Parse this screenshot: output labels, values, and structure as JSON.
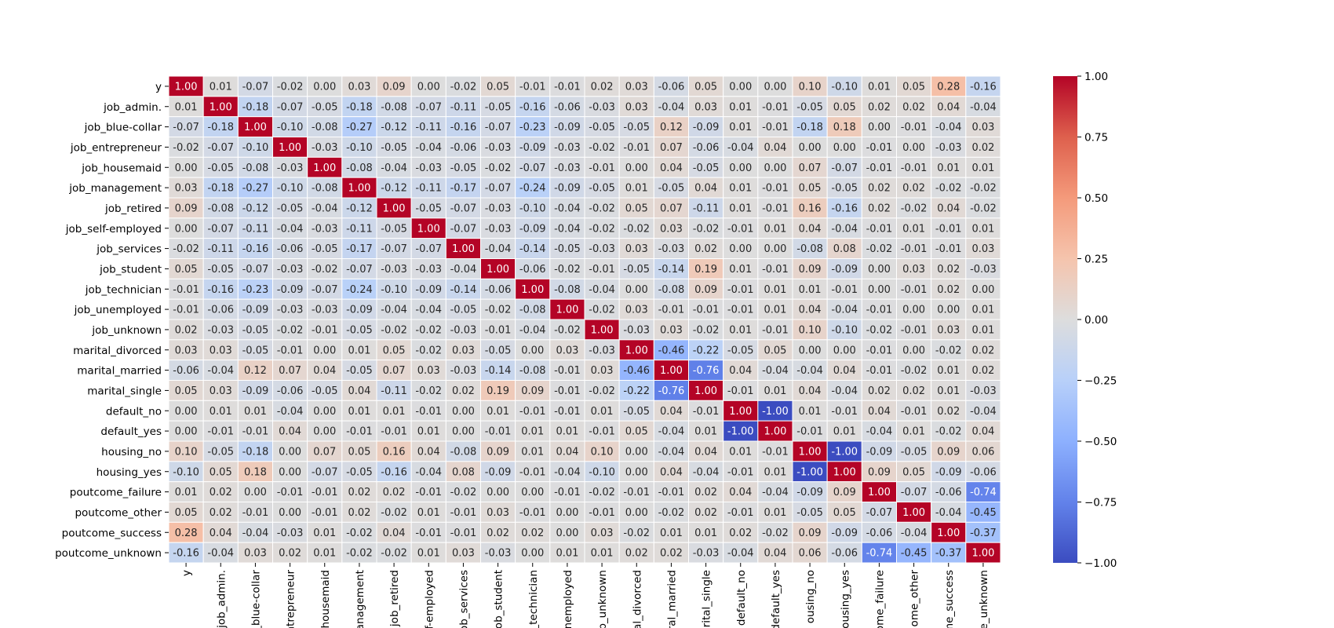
{
  "chart_data": {
    "type": "heatmap",
    "title": "",
    "xlabel": "",
    "ylabel": "",
    "row_labels": [
      "y",
      "job_admin.",
      "job_blue-collar",
      "job_entrepreneur",
      "job_housemaid",
      "job_management",
      "job_retired",
      "job_self-employed",
      "job_services",
      "job_student",
      "job_technician",
      "job_unemployed",
      "job_unknown",
      "marital_divorced",
      "marital_married",
      "marital_single",
      "default_no",
      "default_yes",
      "housing_no",
      "housing_yes",
      "poutcome_failure",
      "poutcome_other",
      "poutcome_success",
      "poutcome_unknown"
    ],
    "column_labels": [
      "y",
      "job_admin.",
      "job_blue-collar",
      "job_entrepreneur",
      "job_housemaid",
      "job_management",
      "job_retired",
      "job_self-employed",
      "job_services",
      "job_student",
      "job_technician",
      "job_unemployed",
      "job_unknown",
      "marital_divorced",
      "marital_married",
      "marital_single",
      "default_no",
      "default_yes",
      "housing_no",
      "housing_yes",
      "poutcome_failure",
      "poutcome_other",
      "poutcome_success",
      "poutcome_unknown"
    ],
    "column_tick_labels_visible": [
      "y",
      "job_admin.",
      "_blue-collar",
      "entrepreneur",
      "housemaid",
      "anagement",
      "job_retired",
      "f-employed",
      "ob_services",
      "ob_student",
      "_technician",
      "nemployed",
      "b_unknown",
      "al_divorced",
      "ral_married",
      "arital_single",
      "default_no",
      "default_yes",
      "ousing_no",
      "ousing_yes",
      "ome_failure",
      "ome_other",
      "me_success",
      "e_unknown"
    ],
    "values": [
      [
        1.0,
        0.01,
        -0.07,
        -0.02,
        0.0,
        0.03,
        0.09,
        -0.0,
        -0.02,
        0.05,
        -0.01,
        -0.01,
        0.02,
        0.03,
        -0.06,
        0.05,
        -0.0,
        0.0,
        0.1,
        -0.1,
        0.01,
        0.05,
        0.28,
        -0.16
      ],
      [
        0.01,
        1.0,
        -0.18,
        -0.07,
        -0.05,
        -0.18,
        -0.08,
        -0.07,
        -0.11,
        -0.05,
        -0.16,
        -0.06,
        -0.03,
        0.03,
        -0.04,
        0.03,
        0.01,
        -0.01,
        -0.05,
        0.05,
        0.02,
        0.02,
        0.04,
        -0.04
      ],
      [
        -0.07,
        -0.18,
        1.0,
        -0.1,
        -0.08,
        -0.27,
        -0.12,
        -0.11,
        -0.16,
        -0.07,
        -0.23,
        -0.09,
        -0.05,
        -0.05,
        0.12,
        -0.09,
        0.01,
        -0.01,
        -0.18,
        0.18,
        -0.0,
        -0.01,
        -0.04,
        0.03
      ],
      [
        -0.02,
        -0.07,
        -0.1,
        1.0,
        -0.03,
        -0.1,
        -0.05,
        -0.04,
        -0.06,
        -0.03,
        -0.09,
        -0.03,
        -0.02,
        -0.01,
        0.07,
        -0.06,
        -0.04,
        0.04,
        0.0,
        -0.0,
        -0.01,
        -0.0,
        -0.03,
        0.02
      ],
      [
        0.0,
        -0.05,
        -0.08,
        -0.03,
        1.0,
        -0.08,
        -0.04,
        -0.03,
        -0.05,
        -0.02,
        -0.07,
        -0.03,
        -0.01,
        -0.0,
        0.04,
        -0.05,
        -0.0,
        0.0,
        0.07,
        -0.07,
        -0.01,
        -0.01,
        0.01,
        0.01
      ],
      [
        0.03,
        -0.18,
        -0.27,
        -0.1,
        -0.08,
        1.0,
        -0.12,
        -0.11,
        -0.17,
        -0.07,
        -0.24,
        -0.09,
        -0.05,
        0.01,
        -0.05,
        0.04,
        0.01,
        -0.01,
        0.05,
        -0.05,
        0.02,
        0.02,
        -0.02,
        -0.02
      ],
      [
        0.09,
        -0.08,
        -0.12,
        -0.05,
        -0.04,
        -0.12,
        1.0,
        -0.05,
        -0.07,
        -0.03,
        -0.1,
        -0.04,
        -0.02,
        0.05,
        0.07,
        -0.11,
        0.01,
        -0.01,
        0.16,
        -0.16,
        0.02,
        -0.02,
        0.04,
        -0.02
      ],
      [
        -0.0,
        -0.07,
        -0.11,
        -0.04,
        -0.03,
        -0.11,
        -0.05,
        1.0,
        -0.07,
        -0.03,
        -0.09,
        -0.04,
        -0.02,
        -0.02,
        0.03,
        -0.02,
        -0.01,
        0.01,
        0.04,
        -0.04,
        -0.01,
        0.01,
        -0.01,
        0.01
      ],
      [
        -0.02,
        -0.11,
        -0.16,
        -0.06,
        -0.05,
        -0.17,
        -0.07,
        -0.07,
        1.0,
        -0.04,
        -0.14,
        -0.05,
        -0.03,
        0.03,
        -0.03,
        0.02,
        0.0,
        -0.0,
        -0.08,
        0.08,
        -0.02,
        -0.01,
        -0.01,
        0.03
      ],
      [
        0.05,
        -0.05,
        -0.07,
        -0.03,
        -0.02,
        -0.07,
        -0.03,
        -0.03,
        -0.04,
        1.0,
        -0.06,
        -0.02,
        -0.01,
        -0.05,
        -0.14,
        0.19,
        0.01,
        -0.01,
        0.09,
        -0.09,
        0.0,
        0.03,
        0.02,
        -0.03
      ],
      [
        -0.01,
        -0.16,
        -0.23,
        -0.09,
        -0.07,
        -0.24,
        -0.1,
        -0.09,
        -0.14,
        -0.06,
        1.0,
        -0.08,
        -0.04,
        -0.0,
        -0.08,
        0.09,
        -0.01,
        0.01,
        0.01,
        -0.01,
        -0.0,
        -0.01,
        0.02,
        -0.0
      ],
      [
        -0.01,
        -0.06,
        -0.09,
        -0.03,
        -0.03,
        -0.09,
        -0.04,
        -0.04,
        -0.05,
        -0.02,
        -0.08,
        1.0,
        -0.02,
        0.03,
        -0.01,
        -0.01,
        -0.01,
        0.01,
        0.04,
        -0.04,
        -0.01,
        -0.0,
        0.0,
        0.01
      ],
      [
        0.02,
        -0.03,
        -0.05,
        -0.02,
        -0.01,
        -0.05,
        -0.02,
        -0.02,
        -0.03,
        -0.01,
        -0.04,
        -0.02,
        1.0,
        -0.03,
        0.03,
        -0.02,
        0.01,
        -0.01,
        0.1,
        -0.1,
        -0.02,
        -0.01,
        0.03,
        0.01
      ],
      [
        0.03,
        0.03,
        -0.05,
        -0.01,
        -0.0,
        0.01,
        0.05,
        -0.02,
        0.03,
        -0.05,
        -0.0,
        0.03,
        -0.03,
        1.0,
        -0.46,
        -0.22,
        -0.05,
        0.05,
        0.0,
        -0.0,
        -0.01,
        -0.0,
        -0.02,
        0.02
      ],
      [
        -0.06,
        -0.04,
        0.12,
        0.07,
        0.04,
        -0.05,
        0.07,
        0.03,
        -0.03,
        -0.14,
        -0.08,
        -0.01,
        0.03,
        -0.46,
        1.0,
        -0.76,
        0.04,
        -0.04,
        -0.04,
        0.04,
        -0.01,
        -0.02,
        0.01,
        0.02
      ],
      [
        0.05,
        0.03,
        -0.09,
        -0.06,
        -0.05,
        0.04,
        -0.11,
        -0.02,
        0.02,
        0.19,
        0.09,
        -0.01,
        -0.02,
        -0.22,
        -0.76,
        1.0,
        -0.01,
        0.01,
        0.04,
        -0.04,
        0.02,
        0.02,
        0.01,
        -0.03
      ],
      [
        -0.0,
        0.01,
        0.01,
        -0.04,
        -0.0,
        0.01,
        0.01,
        -0.01,
        0.0,
        0.01,
        -0.01,
        -0.01,
        0.01,
        -0.05,
        0.04,
        -0.01,
        1.0,
        -1.0,
        0.01,
        -0.01,
        0.04,
        -0.01,
        0.02,
        -0.04
      ],
      [
        0.0,
        -0.01,
        -0.01,
        0.04,
        0.0,
        -0.01,
        -0.01,
        0.01,
        -0.0,
        -0.01,
        0.01,
        0.01,
        -0.01,
        0.05,
        -0.04,
        0.01,
        -1.0,
        1.0,
        -0.01,
        0.01,
        -0.04,
        0.01,
        -0.02,
        0.04
      ],
      [
        0.1,
        -0.05,
        -0.18,
        0.0,
        0.07,
        0.05,
        0.16,
        0.04,
        -0.08,
        0.09,
        0.01,
        0.04,
        0.1,
        0.0,
        -0.04,
        0.04,
        0.01,
        -0.01,
        1.0,
        -1.0,
        -0.09,
        -0.05,
        0.09,
        0.06
      ],
      [
        -0.1,
        0.05,
        0.18,
        -0.0,
        -0.07,
        -0.05,
        -0.16,
        -0.04,
        0.08,
        -0.09,
        -0.01,
        -0.04,
        -0.1,
        -0.0,
        0.04,
        -0.04,
        -0.01,
        0.01,
        -1.0,
        1.0,
        0.09,
        0.05,
        -0.09,
        -0.06
      ],
      [
        0.01,
        0.02,
        -0.0,
        -0.01,
        -0.01,
        0.02,
        0.02,
        -0.01,
        -0.02,
        0.0,
        -0.0,
        -0.01,
        -0.02,
        -0.01,
        -0.01,
        0.02,
        0.04,
        -0.04,
        -0.09,
        0.09,
        1.0,
        -0.07,
        -0.06,
        -0.74
      ],
      [
        0.05,
        0.02,
        -0.01,
        -0.0,
        -0.01,
        0.02,
        -0.02,
        0.01,
        -0.01,
        0.03,
        -0.01,
        -0.0,
        -0.01,
        -0.0,
        -0.02,
        0.02,
        -0.01,
        0.01,
        -0.05,
        0.05,
        -0.07,
        1.0,
        -0.04,
        -0.45
      ],
      [
        0.28,
        0.04,
        -0.04,
        -0.03,
        0.01,
        -0.02,
        0.04,
        -0.01,
        -0.01,
        0.02,
        0.02,
        0.0,
        0.03,
        -0.02,
        0.01,
        0.01,
        0.02,
        -0.02,
        0.09,
        -0.09,
        -0.06,
        -0.04,
        1.0,
        -0.37
      ],
      [
        -0.16,
        -0.04,
        0.03,
        0.02,
        0.01,
        -0.02,
        -0.02,
        0.01,
        0.03,
        -0.03,
        -0.0,
        0.01,
        0.01,
        0.02,
        0.02,
        -0.03,
        -0.04,
        0.04,
        0.06,
        -0.06,
        -0.74,
        -0.45,
        -0.37,
        1.0
      ]
    ],
    "value_format": "0.00",
    "colormap": "coolwarm",
    "vmin": -1.0,
    "vmax": 1.0,
    "colorbar": {
      "position": "right",
      "ticks": [
        1.0,
        0.75,
        0.5,
        0.25,
        0.0,
        -0.25,
        -0.5,
        -0.75,
        -1.0
      ],
      "tick_labels": [
        "1.00",
        "0.75",
        "0.50",
        "0.25",
        "0.00",
        "−0.25",
        "−0.50",
        "−0.75",
        "−1.00"
      ]
    },
    "grid": false,
    "cell_border_color": "#ffffff"
  }
}
